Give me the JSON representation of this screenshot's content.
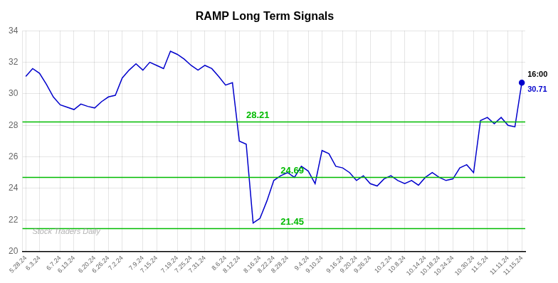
{
  "chart_data": {
    "type": "line",
    "title": "RAMP Long Term Signals",
    "categories": [
      "5.28.24",
      null,
      "6.3.24",
      null,
      null,
      "6.7.24",
      null,
      "6.13.24",
      null,
      null,
      "6.20.24",
      null,
      "6.26.24",
      null,
      "7.2.24",
      null,
      null,
      "7.9.24",
      null,
      "7.15.24",
      null,
      null,
      "7.19.24",
      null,
      "7.25.24",
      null,
      "7.31.24",
      null,
      null,
      "8.6.24",
      null,
      "8.12.24",
      null,
      null,
      "8.16.24",
      null,
      "8.22.24",
      null,
      "8.28.24",
      null,
      null,
      "9.4.24",
      null,
      "9.10.24",
      null,
      null,
      "9.16.24",
      null,
      "9.20.24",
      null,
      "9.26.24",
      null,
      null,
      "10.2.24",
      null,
      "10.8.24",
      null,
      null,
      "10.14.24",
      null,
      "10.18.24",
      null,
      "10.24.24",
      null,
      null,
      "10.30.24",
      null,
      "11.5.24",
      null,
      null,
      "11.11.24",
      null,
      "11.15.24"
    ],
    "series": [
      {
        "name": "RAMP",
        "color": "#0000cc",
        "values": [
          31.1,
          31.6,
          31.3,
          30.6,
          29.8,
          29.3,
          29.15,
          29.0,
          29.35,
          29.2,
          29.1,
          29.5,
          29.8,
          29.9,
          31.0,
          31.5,
          31.9,
          31.5,
          32.0,
          31.8,
          31.6,
          32.7,
          32.5,
          32.2,
          31.8,
          31.5,
          31.8,
          31.6,
          31.1,
          30.55,
          30.7,
          27.0,
          26.8,
          21.8,
          22.1,
          23.2,
          24.5,
          24.8,
          25.0,
          24.7,
          25.4,
          25.1,
          24.3,
          26.4,
          26.2,
          25.4,
          25.3,
          25.0,
          24.5,
          24.8,
          24.3,
          24.15,
          24.6,
          24.8,
          24.5,
          24.3,
          24.5,
          24.2,
          24.7,
          25.0,
          24.7,
          24.5,
          24.6,
          25.3,
          25.5,
          25.0,
          28.3,
          28.5,
          28.1,
          28.5,
          28.0,
          27.9,
          30.71
        ]
      }
    ],
    "hlines": {
      "values": [
        28.21,
        24.69,
        21.45
      ],
      "labels": [
        "28.21",
        "24.69",
        "21.45"
      ],
      "color": "#00bb00"
    },
    "last_point": {
      "time_label": "16:00",
      "value_label": "30.71"
    },
    "watermark": "Stock Traders Daily",
    "ylim": [
      20,
      34
    ],
    "yticks": [
      20,
      22,
      24,
      26,
      28,
      30,
      32,
      34
    ],
    "grid": true
  }
}
